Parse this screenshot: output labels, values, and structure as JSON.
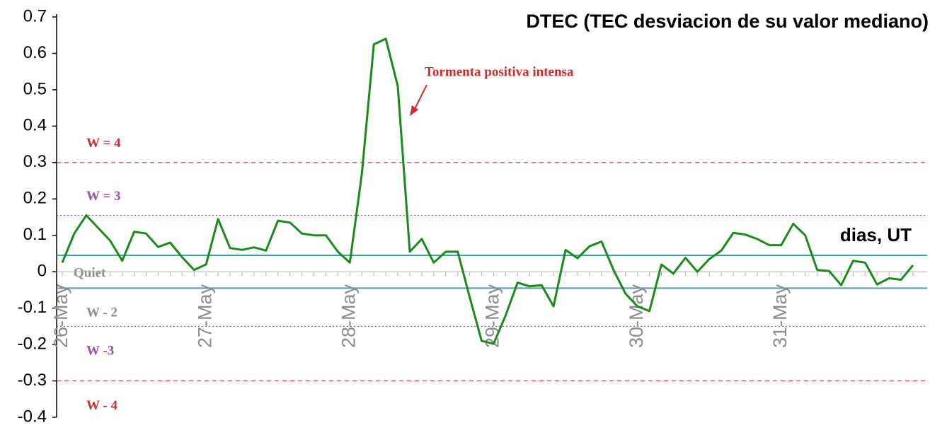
{
  "chart_data": {
    "type": "line",
    "title": "DTEC (TEC desviacion de su valor mediano)",
    "x_label": "dias, UT",
    "annotation": {
      "text": "Tormenta positiva intensa",
      "color": "#d42a2a"
    },
    "categories": [
      "26-May",
      null,
      null,
      null,
      null,
      null,
      null,
      null,
      null,
      null,
      null,
      null,
      "27-May",
      null,
      null,
      null,
      null,
      null,
      null,
      null,
      null,
      null,
      null,
      null,
      "28-May",
      null,
      null,
      null,
      null,
      null,
      null,
      null,
      null,
      null,
      null,
      null,
      "29-May",
      null,
      null,
      null,
      null,
      null,
      null,
      null,
      null,
      null,
      null,
      null,
      "30-May",
      null,
      null,
      null,
      null,
      null,
      null,
      null,
      null,
      null,
      null,
      null,
      "31-May",
      null,
      null,
      null,
      null,
      null,
      null,
      null,
      null,
      null,
      null,
      null
    ],
    "series": [
      {
        "name": "DTEC",
        "color": "#1a8a1a",
        "values": [
          0.025,
          0.105,
          0.155,
          0.12,
          0.085,
          0.03,
          0.11,
          0.105,
          0.068,
          0.08,
          0.04,
          0.005,
          0.02,
          0.145,
          0.065,
          0.06,
          0.067,
          0.058,
          0.14,
          0.135,
          0.105,
          0.1,
          0.1,
          0.055,
          0.025,
          0.27,
          0.625,
          0.64,
          0.51,
          0.055,
          0.09,
          0.025,
          0.055,
          0.055,
          -0.07,
          -0.19,
          -0.198,
          -0.12,
          -0.03,
          -0.04,
          -0.037,
          -0.095,
          0.06,
          0.037,
          0.07,
          0.083,
          0.005,
          -0.06,
          -0.095,
          -0.108,
          0.02,
          -0.005,
          0.038,
          0.0,
          0.035,
          0.058,
          0.107,
          0.102,
          0.09,
          0.073,
          0.073,
          0.132,
          0.1,
          0.005,
          0.002,
          -0.037,
          0.03,
          0.025,
          -0.035,
          -0.018,
          -0.022,
          0.018
        ]
      }
    ],
    "reference_lines": [
      {
        "value": 0.3,
        "label": "W = 4",
        "color": "#c83232",
        "style": "dashed",
        "label_side": "above"
      },
      {
        "value": 0.155,
        "label": "W = 3",
        "color": "#9b4fa8",
        "style": "dotted",
        "label_side": "above"
      },
      {
        "value": 0.045,
        "label": "Quiet",
        "color": "#4a9ab0",
        "style": "solid",
        "label_side": "below"
      },
      {
        "value": -0.045,
        "label": "W - 2",
        "color": "#4a9ab0",
        "style": "solid",
        "label_side": "below"
      },
      {
        "value": -0.15,
        "label": "W -3",
        "color": "#9b4fa8",
        "style": "dotted",
        "label_side": "below"
      },
      {
        "value": -0.3,
        "label": "W - 4",
        "color": "#c83232",
        "style": "dashed",
        "label_side": "below"
      }
    ],
    "ylim": [
      -0.4,
      0.7
    ],
    "yticks": [
      -0.4,
      -0.3,
      -0.2,
      -0.1,
      0,
      0.1,
      0.2,
      0.3,
      0.4,
      0.5,
      0.6,
      0.7
    ]
  }
}
